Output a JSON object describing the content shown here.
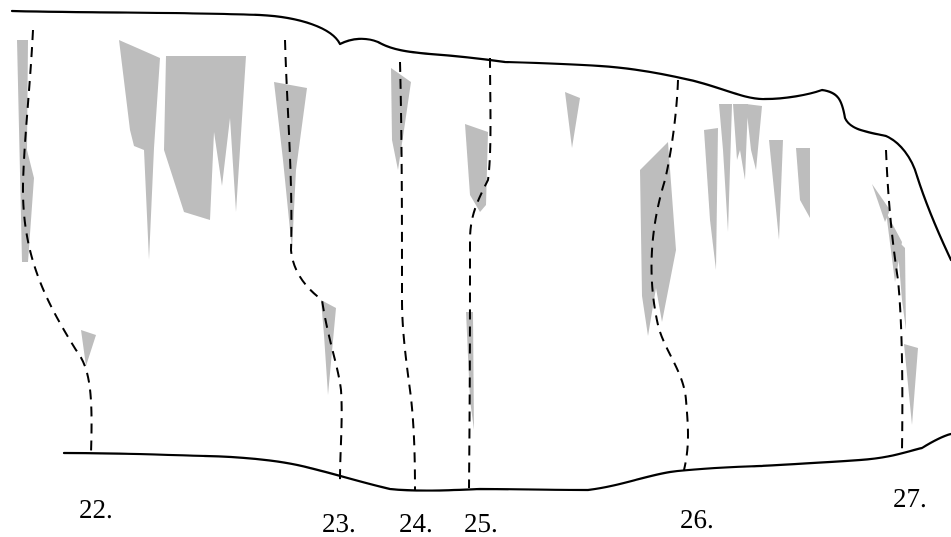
{
  "diagram": {
    "type": "climbing-route-topo",
    "colors": {
      "outline": "#000000",
      "route_line": "#000000",
      "rock_shading": "#bdbdbd",
      "background": "#ffffff"
    },
    "routes": [
      {
        "id": "22",
        "label": "22."
      },
      {
        "id": "23",
        "label": "23."
      },
      {
        "id": "24",
        "label": "24."
      },
      {
        "id": "25",
        "label": "25."
      },
      {
        "id": "26",
        "label": "26."
      },
      {
        "id": "27",
        "label": "27."
      }
    ]
  }
}
